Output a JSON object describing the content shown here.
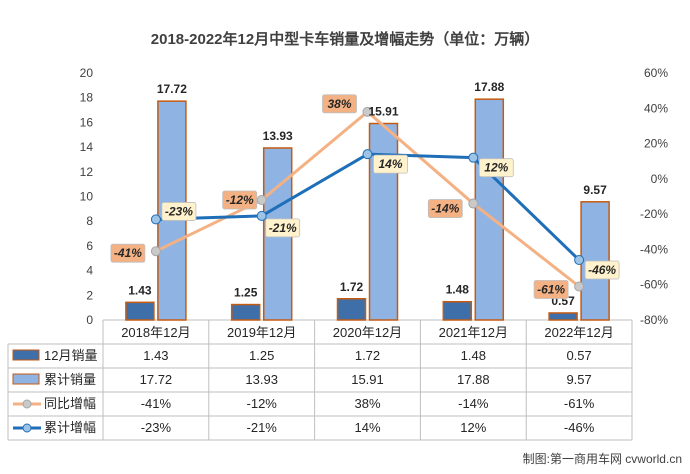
{
  "chart_data": {
    "type": "bar",
    "title": "2018-2022年12月中型卡车销量及增幅走势（单位：万辆）",
    "categories": [
      "2018年12月",
      "2019年12月",
      "2020年12月",
      "2021年12月",
      "2022年12月"
    ],
    "y_left": {
      "min": 0,
      "max": 20,
      "ticks": [
        "0",
        "2",
        "4",
        "6",
        "8",
        "10",
        "12",
        "14",
        "16",
        "18",
        "20"
      ]
    },
    "y_right": {
      "min": -80,
      "max": 60,
      "ticks": [
        "-80%",
        "-60%",
        "-40%",
        "-20%",
        "0%",
        "20%",
        "40%",
        "60%"
      ]
    },
    "series": [
      {
        "name": "12月销量",
        "kind": "bar",
        "axis": "left",
        "values": [
          1.43,
          1.25,
          1.72,
          1.48,
          0.57
        ],
        "labels": [
          "1.43",
          "1.25",
          "1.72",
          "1.48",
          "0.57"
        ],
        "table": [
          "1.43",
          "1.25",
          "1.72",
          "1.48",
          "0.57"
        ],
        "color": "#3E6FA8"
      },
      {
        "name": "累计销量",
        "kind": "bar",
        "axis": "left",
        "values": [
          17.72,
          13.93,
          15.91,
          17.88,
          9.57
        ],
        "labels": [
          "17.72",
          "13.93",
          "15.91",
          "17.88",
          "9.57"
        ],
        "table": [
          "17.72",
          "13.93",
          "15.91",
          "17.88",
          "9.57"
        ],
        "color": "#8FB4E3"
      },
      {
        "name": "同比增幅",
        "kind": "line",
        "axis": "right",
        "values": [
          -41,
          -12,
          38,
          -14,
          -61
        ],
        "labels": [
          "-41%",
          "-12%",
          "38%",
          "-14%",
          "-61%"
        ],
        "table": [
          "-41%",
          "-12%",
          "38%",
          "-14%",
          "-61%"
        ],
        "color": "#F4B183"
      },
      {
        "name": "累计增幅",
        "kind": "line",
        "axis": "right",
        "values": [
          -23,
          -21,
          14,
          12,
          -46
        ],
        "labels": [
          "-23%",
          "-21%",
          "14%",
          "12%",
          "-46%"
        ],
        "table": [
          "-23%",
          "-21%",
          "14%",
          "12%",
          "-46%"
        ],
        "color": "#1F6FB8"
      }
    ],
    "grid": false,
    "legend": "data-table-left"
  },
  "credit": "制图:第一商用车网 cvworld.cn",
  "colors": {
    "bar_border": "#C55A11",
    "axis": "#BFBFBF",
    "text": "#404040",
    "label_box_yoy": "#F4B183",
    "label_box_cum": "#FFF2CC"
  }
}
